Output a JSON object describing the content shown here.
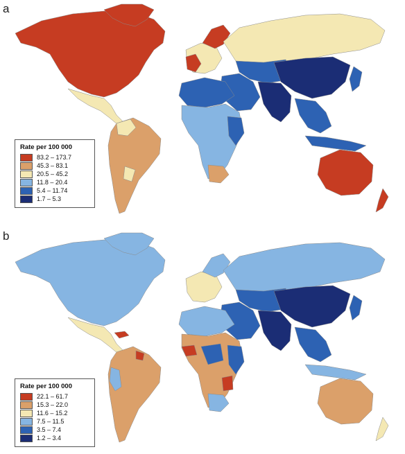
{
  "panels": [
    {
      "letter": "a",
      "legend_title": "Rate per 100 000",
      "classes": [
        {
          "label": "83.2 – 173.7",
          "color": "#c63c22"
        },
        {
          "label": "45.3 – 83.1",
          "color": "#dba06a"
        },
        {
          "label": "20.5 – 45.2",
          "color": "#f4e8b3"
        },
        {
          "label": "11.8 – 20.4",
          "color": "#86b5e2"
        },
        {
          "label": "5.4 – 11.74",
          "color": "#2d62b3"
        },
        {
          "label": "1.7 – 5.3",
          "color": "#1b2d75"
        }
      ]
    },
    {
      "letter": "b",
      "legend_title": "Rate per 100 000",
      "classes": [
        {
          "label": "22.1 – 61.7",
          "color": "#c63c22"
        },
        {
          "label": "15.3 – 22.0",
          "color": "#dba06a"
        },
        {
          "label": "11.6 – 15.2",
          "color": "#f4e8b3"
        },
        {
          "label": "7.5 – 11.5",
          "color": "#86b5e2"
        },
        {
          "label": "3.5 – 7.4",
          "color": "#2d62b3"
        },
        {
          "label": "1.2 – 3.4",
          "color": "#1b2d75"
        }
      ]
    }
  ]
}
